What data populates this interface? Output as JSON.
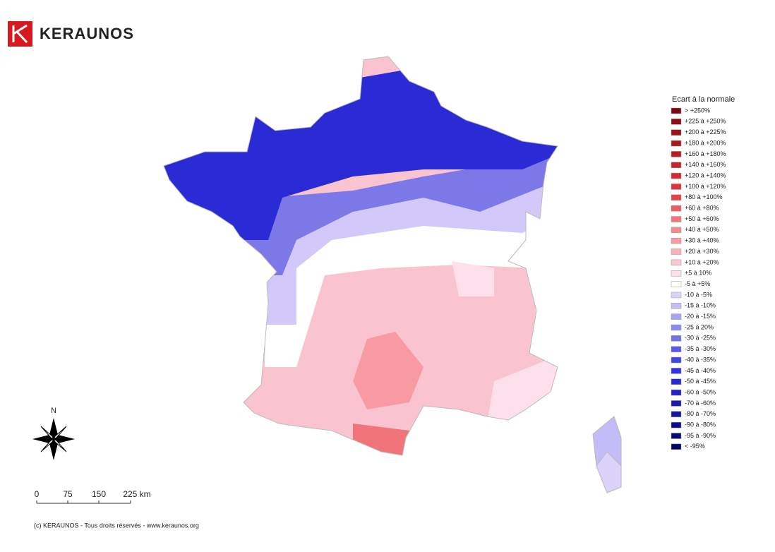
{
  "header": {
    "brand": "KERAUNOS"
  },
  "legend": {
    "title": "Ecart à la normale",
    "items": [
      {
        "label": "> +250%",
        "color": "#7a0a10"
      },
      {
        "label": "+225 à +250%",
        "color": "#8b0e14"
      },
      {
        "label": "+200 à +225%",
        "color": "#9c1419"
      },
      {
        "label": "+180 à +200%",
        "color": "#ab181e"
      },
      {
        "label": "+160 à +180%",
        "color": "#b91d23"
      },
      {
        "label": "+140 à +160%",
        "color": "#c72329"
      },
      {
        "label": "+120 à +140%",
        "color": "#d42a30"
      },
      {
        "label": "+100 à +120%",
        "color": "#df343a"
      },
      {
        "label": "+80 à +100%",
        "color": "#e84248"
      },
      {
        "label": "+60 à +80%",
        "color": "#ee5b60"
      },
      {
        "label": "+50 à +60%",
        "color": "#f07479"
      },
      {
        "label": "+40 à +50%",
        "color": "#f48a8f"
      },
      {
        "label": "+30 à +40%",
        "color": "#f79ea3"
      },
      {
        "label": "+20 à +30%",
        "color": "#f9b3ba"
      },
      {
        "label": "+10 à +20%",
        "color": "#fac6d0"
      },
      {
        "label": "+5 à 10%",
        "color": "#fde0ec"
      },
      {
        "label": "-5 à +5%",
        "color": "#ffffff"
      },
      {
        "label": "-10 à -5%",
        "color": "#dcd2fa"
      },
      {
        "label": "-15 à -10%",
        "color": "#c3bcf6"
      },
      {
        "label": "-20 à -15%",
        "color": "#a9a4f0"
      },
      {
        "label": "-25 à 20%",
        "color": "#8d8aea"
      },
      {
        "label": "-30 à -25%",
        "color": "#7370e8"
      },
      {
        "label": "-35 à -30%",
        "color": "#5b58ea"
      },
      {
        "label": "-40 à -35%",
        "color": "#4443ec"
      },
      {
        "label": "-45 à -40%",
        "color": "#3230e6"
      },
      {
        "label": "-50 à -45%",
        "color": "#2a29d6"
      },
      {
        "label": "-60 à -50%",
        "color": "#2222c4"
      },
      {
        "label": "-70 à -60%",
        "color": "#1b1bb0"
      },
      {
        "label": "-80 à -70%",
        "color": "#14149c"
      },
      {
        "label": "-90 à -80%",
        "color": "#0e0e88"
      },
      {
        "label": "-95 à -90%",
        "color": "#090976"
      },
      {
        "label": "< -95%",
        "color": "#050566"
      }
    ]
  },
  "compass": {
    "north": "N"
  },
  "scale": {
    "labels": [
      "0",
      "75",
      "150",
      "225 km"
    ]
  },
  "footer": {
    "copyright": "(c) KERAUNOS - Tous droits réservés - www.keraunos.org"
  }
}
